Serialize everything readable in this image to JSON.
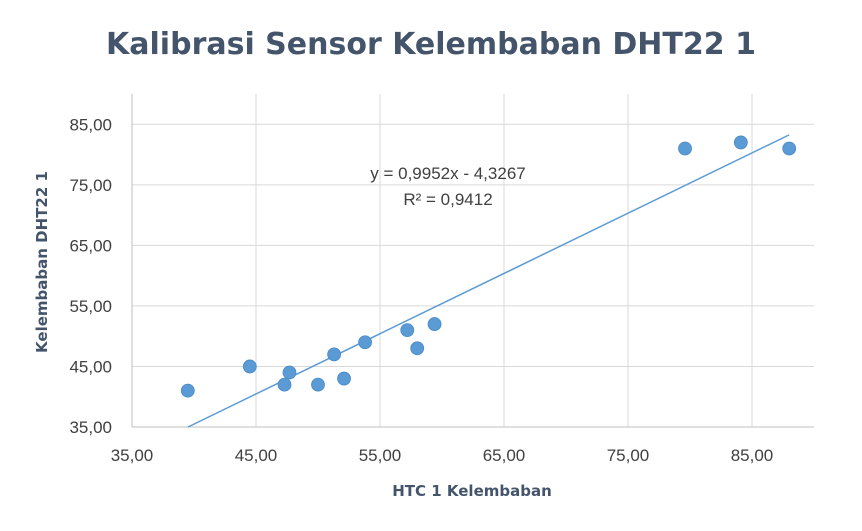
{
  "chart_data": {
    "type": "scatter",
    "title": "Kalibrasi Sensor Kelembaban DHT22 1",
    "xlabel": "HTC 1 Kelembaban",
    "ylabel": "Kelembaban DHT22 1",
    "xlim": [
      35,
      90
    ],
    "ylim": [
      35,
      90
    ],
    "x_ticks": [
      "35,00",
      "45,00",
      "55,00",
      "65,00",
      "75,00",
      "85,00"
    ],
    "y_ticks": [
      "35,00",
      "45,00",
      "55,00",
      "65,00",
      "75,00",
      "85,00"
    ],
    "x_tick_values": [
      35,
      45,
      55,
      65,
      75,
      85
    ],
    "y_tick_values": [
      35,
      45,
      55,
      65,
      75,
      85
    ],
    "grid": true,
    "legend": "none",
    "series": [
      {
        "color": "#5B9BD5",
        "points": [
          {
            "x": 39.5,
            "y": 41
          },
          {
            "x": 44.5,
            "y": 45
          },
          {
            "x": 47.3,
            "y": 42
          },
          {
            "x": 47.7,
            "y": 44
          },
          {
            "x": 50.0,
            "y": 42
          },
          {
            "x": 51.3,
            "y": 47
          },
          {
            "x": 52.1,
            "y": 43
          },
          {
            "x": 53.8,
            "y": 49
          },
          {
            "x": 57.2,
            "y": 51
          },
          {
            "x": 58.0,
            "y": 48
          },
          {
            "x": 59.4,
            "y": 52
          },
          {
            "x": 79.6,
            "y": 81
          },
          {
            "x": 84.1,
            "y": 82
          },
          {
            "x": 88.0,
            "y": 81
          }
        ]
      }
    ],
    "trendline": {
      "type": "linear",
      "slope": 0.9952,
      "intercept": -4.3267,
      "x_range": [
        39.5,
        88.0
      ],
      "color": "#5B9BD5",
      "equation": "y = 0,9952x - 4,3267",
      "r_squared": "R² = 0,9412"
    }
  }
}
